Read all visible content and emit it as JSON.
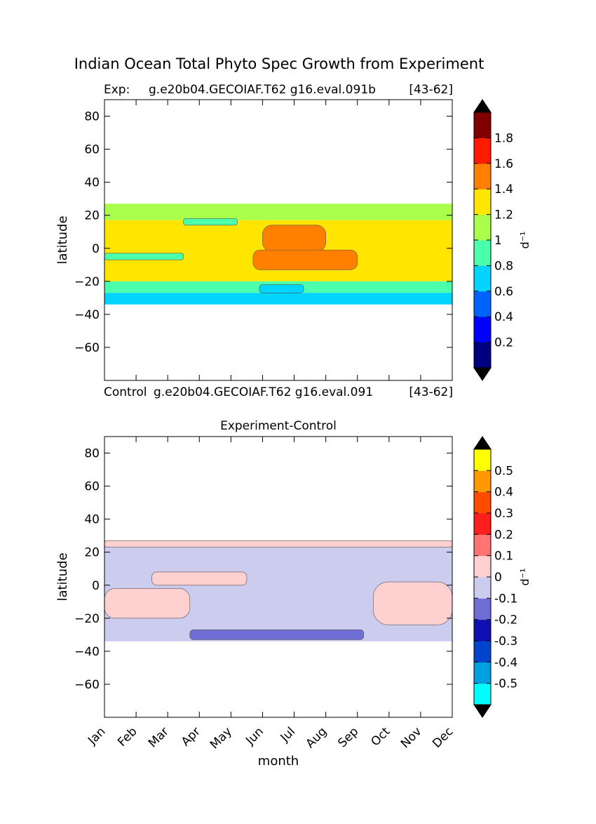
{
  "suptitle": "Indian Ocean Total Phyto Spec Growth from Experiment",
  "chart_data": [
    {
      "type": "heatmap",
      "panel": "top",
      "title_left": "Exp:",
      "title_center": "g.e20b04.GECOIAF.T62 g16.eval.091b",
      "title_right": "[43-62]",
      "bottom_left": "Control",
      "bottom_center": "g.e20b04.GECOIAF.T62 g16.eval.091",
      "bottom_right": "[43-62]",
      "xlabel": "",
      "ylabel": "latitude",
      "xlim": [
        0,
        11
      ],
      "ylim": [
        -80,
        90
      ],
      "yticks": [
        80,
        60,
        40,
        20,
        0,
        -20,
        -40,
        -60
      ],
      "data_lat_range": [
        -34,
        27
      ],
      "colorbar": {
        "label": "d⁻¹",
        "levels": [
          0,
          0.2,
          0.4,
          0.6,
          0.8,
          1.0,
          1.2,
          1.4,
          1.6,
          1.8,
          2.0
        ],
        "ticks": [
          0.2,
          0.4,
          0.6,
          0.8,
          1.0,
          1.2,
          1.4,
          1.6,
          1.8
        ],
        "tick_labels": [
          "0.2",
          "0.4",
          "0.6",
          "0.8",
          "1",
          "1.2",
          "1.4",
          "1.6",
          "1.8"
        ],
        "colors": [
          "#00007f",
          "#0000ff",
          "#0063ff",
          "#00d4ff",
          "#4cffaa",
          "#a9ff4c",
          "#ffe500",
          "#ff7f00",
          "#ff1a00",
          "#7f0000"
        ],
        "under_color": "#000000",
        "over_color": "#000000"
      },
      "bands": [
        {
          "lat": [
            17,
            27
          ],
          "value": 1.1
        },
        {
          "lat": [
            -20,
            17
          ],
          "value": 1.3
        },
        {
          "lat": [
            -27,
            -20
          ],
          "value": 0.9
        },
        {
          "lat": [
            -34,
            -27
          ],
          "value": 0.7
        }
      ],
      "patches": [
        {
          "month": [
            5.0,
            7.0
          ],
          "lat": [
            -2,
            14
          ],
          "value": 1.5
        },
        {
          "month": [
            4.7,
            8.0
          ],
          "lat": [
            -13,
            -1
          ],
          "value": 1.5
        },
        {
          "month": [
            0.0,
            2.5
          ],
          "lat": [
            -7,
            -3
          ],
          "value": 0.9
        },
        {
          "month": [
            2.5,
            4.2
          ],
          "lat": [
            14,
            18
          ],
          "value": 0.9
        },
        {
          "month": [
            4.9,
            6.3
          ],
          "lat": [
            -27,
            -22
          ],
          "value": 0.7
        }
      ]
    },
    {
      "type": "heatmap",
      "panel": "bottom",
      "title": "Experiment-Control",
      "xlabel": "month",
      "ylabel": "latitude",
      "categories": [
        "Jan",
        "Feb",
        "Mar",
        "Apr",
        "May",
        "Jun",
        "Jul",
        "Aug",
        "Sep",
        "Oct",
        "Nov",
        "Dec"
      ],
      "xlim": [
        0,
        11
      ],
      "ylim": [
        -80,
        90
      ],
      "yticks": [
        80,
        60,
        40,
        20,
        0,
        -20,
        -40,
        -60
      ],
      "data_lat_range": [
        -34,
        27
      ],
      "colorbar": {
        "label": "d⁻¹",
        "levels": [
          -0.6,
          -0.5,
          -0.4,
          -0.3,
          -0.2,
          -0.1,
          0,
          0.1,
          0.2,
          0.3,
          0.4,
          0.5,
          0.6
        ],
        "ticks": [
          -0.5,
          -0.4,
          -0.3,
          -0.2,
          -0.1,
          0,
          0.1,
          0.2,
          0.3,
          0.4,
          0.5
        ],
        "tick_labels": [
          "-0.5",
          "-0.4",
          "-0.3",
          "-0.2",
          "-0.1",
          "0",
          "0.1",
          "0.2",
          "0.3",
          "0.4",
          "0.5"
        ],
        "colors": [
          "#00ffff",
          "#00a0e0",
          "#0044cc",
          "#1010b0",
          "#6e6ed4",
          "#ccccee",
          "#ffd0d0",
          "#ff7373",
          "#ff1e1e",
          "#ff4b00",
          "#ff9900",
          "#ffff00"
        ],
        "under_color": "#000000",
        "over_color": "#000000"
      },
      "bands": [
        {
          "lat": [
            -34,
            27
          ],
          "value": -0.05
        }
      ],
      "patches": [
        {
          "month": [
            0.0,
            11.0
          ],
          "lat": [
            23,
            27
          ],
          "value": 0.05
        },
        {
          "month": [
            1.5,
            4.5
          ],
          "lat": [
            0,
            8
          ],
          "value": 0.05
        },
        {
          "month": [
            0.0,
            2.7
          ],
          "lat": [
            -20,
            -2
          ],
          "value": 0.05
        },
        {
          "month": [
            8.5,
            11.0
          ],
          "lat": [
            -24,
            2
          ],
          "value": 0.05
        },
        {
          "month": [
            2.7,
            8.2
          ],
          "lat": [
            -33,
            -27
          ],
          "value": -0.15
        }
      ]
    }
  ]
}
